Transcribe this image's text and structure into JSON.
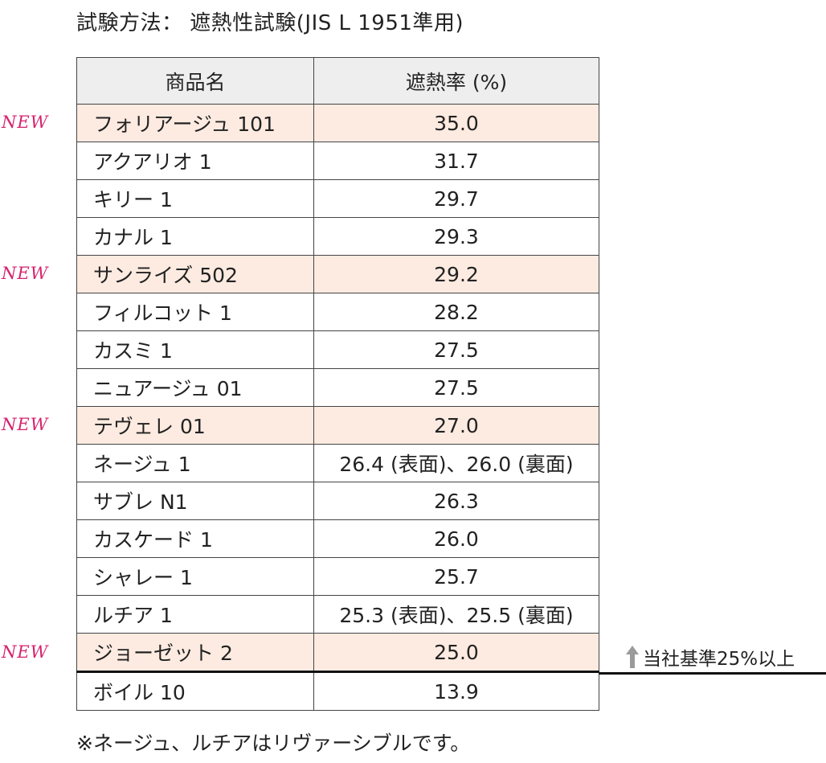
{
  "title": "試験方法：  遮熱性試験(JIS L 1951準用)",
  "table": {
    "headers": [
      "商品名",
      "遮熱率 (%)"
    ],
    "rows": [
      {
        "name": "フォリアージュ 101",
        "value": "35.0",
        "is_new": true
      },
      {
        "name": "アクアリオ 1",
        "value": "31.7",
        "is_new": false
      },
      {
        "name": "キリー 1",
        "value": "29.7",
        "is_new": false
      },
      {
        "name": "カナル 1",
        "value": "29.3",
        "is_new": false
      },
      {
        "name": "サンライズ 502",
        "value": "29.2",
        "is_new": true
      },
      {
        "name": "フィルコット 1",
        "value": "28.2",
        "is_new": false
      },
      {
        "name": "カスミ 1",
        "value": "27.5",
        "is_new": false
      },
      {
        "name": "ニュアージュ 01",
        "value": "27.5",
        "is_new": false
      },
      {
        "name": "テヴェレ 01",
        "value": "27.0",
        "is_new": true
      },
      {
        "name": "ネージュ 1",
        "value": "26.4 (表面)、26.0 (裏面)",
        "is_new": false
      },
      {
        "name": "サブレ N1",
        "value": "26.3",
        "is_new": false
      },
      {
        "name": "カスケード 1",
        "value": "26.0",
        "is_new": false
      },
      {
        "name": "シャレー 1",
        "value": "25.7",
        "is_new": false
      },
      {
        "name": "ルチア 1",
        "value": "25.3 (表面)、25.5 (裏面)",
        "is_new": false
      },
      {
        "name": "ジョーゼット 2",
        "value": "25.0",
        "is_new": true
      },
      {
        "name": "ボイル 10",
        "value": "13.9",
        "is_new": false
      }
    ]
  },
  "new_label": "NEW",
  "standard_note": "当社基準25%以上",
  "footnote": "※ネージュ、ルチアはリヴァーシブルです。",
  "colors": {
    "new_row_bg": "#fdebe1",
    "new_label": "#d6226e",
    "header_bg": "#eeeeee",
    "arrow": "#9a9a9a"
  },
  "icons": {
    "standard_arrow": "up-arrow-icon"
  }
}
